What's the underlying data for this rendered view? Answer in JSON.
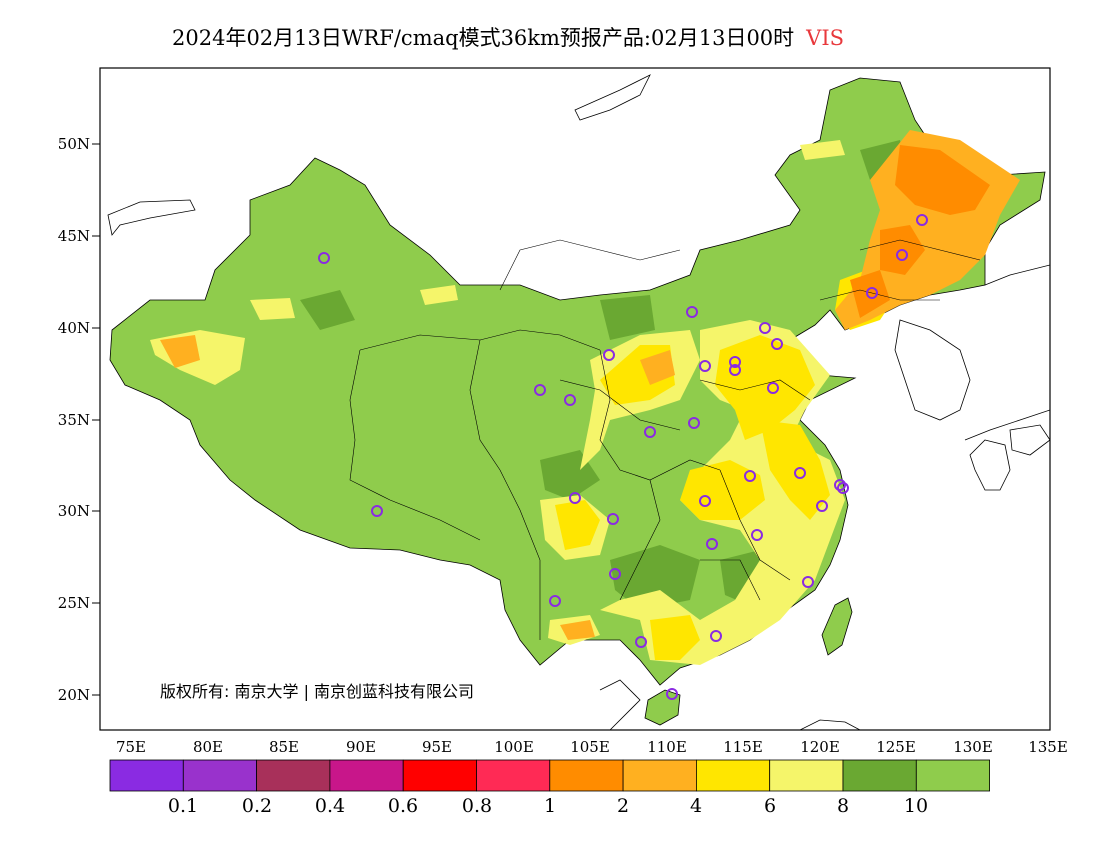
{
  "header": {
    "title": "2024年02月13日WRF/cmaq模式36km预报产品:02月13日00时",
    "variable": "VIS"
  },
  "map": {
    "lat_labels": [
      "50N",
      "45N",
      "40N",
      "35N",
      "30N",
      "25N",
      "20N"
    ],
    "lon_labels": [
      "75E",
      "80E",
      "85E",
      "90E",
      "95E",
      "100E",
      "105E",
      "110E",
      "115E",
      "120E",
      "125E",
      "130E",
      "135E"
    ],
    "copyright": "版权所有: 南京大学 | 南京创蓝科技有限公司",
    "background_color": "#8fcc4c",
    "stations": 33
  },
  "colorbar": {
    "colors": [
      "#8a2be2",
      "#9932cc",
      "#a8305a",
      "#c8168a",
      "#ff0000",
      "#ff2a55",
      "#ff8c00",
      "#ffb020",
      "#ffe600",
      "#f5f56a",
      "#6aa832",
      "#8fcc4c"
    ],
    "labels": [
      "0.1",
      "0.2",
      "0.4",
      "0.6",
      "0.8",
      "1",
      "2",
      "4",
      "6",
      "8",
      "10"
    ]
  }
}
